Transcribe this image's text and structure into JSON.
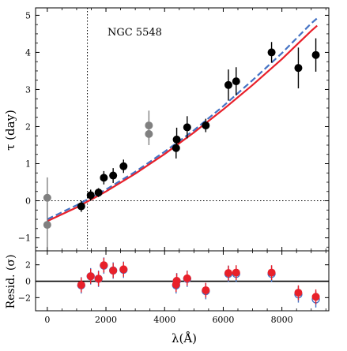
{
  "chart_data": [
    {
      "type": "scatter",
      "annotation": "NGC 5548",
      "xlabel": "",
      "ylabel": "τ (day)",
      "xlim": [
        -400,
        9600
      ],
      "ylim": [
        -1.35,
        5.2
      ],
      "x_ticks": [
        0,
        2000,
        4000,
        6000,
        8000
      ],
      "y_ticks": [
        -1,
        0,
        1,
        2,
        3,
        4,
        5
      ],
      "y_tick_labels": [
        "−1",
        "0",
        "1",
        "2",
        "3",
        "4",
        "5"
      ],
      "vline_x": 1367,
      "hline_y": 0,
      "series": [
        {
          "color": "#000000",
          "points": [
            {
              "x": 1158,
              "y": -0.15,
              "err": 0.15
            },
            {
              "x": 1479,
              "y": 0.15,
              "err": 0.15
            },
            {
              "x": 1746,
              "y": 0.22,
              "err": 0.12
            },
            {
              "x": 1928,
              "y": 0.62,
              "err": 0.18
            },
            {
              "x": 2246,
              "y": 0.68,
              "err": 0.2
            },
            {
              "x": 2600,
              "y": 0.93,
              "err": 0.18
            },
            {
              "x": 4392,
              "y": 1.42,
              "err": 0.28
            },
            {
              "x": 4413,
              "y": 1.65,
              "err": 0.32
            },
            {
              "x": 4770,
              "y": 1.98,
              "err": 0.3
            },
            {
              "x": 5404,
              "y": 2.03,
              "err": 0.18
            },
            {
              "x": 6176,
              "y": 3.12,
              "err": 0.42
            },
            {
              "x": 6440,
              "y": 3.22,
              "err": 0.38
            },
            {
              "x": 7648,
              "y": 4.0,
              "err": 0.28
            },
            {
              "x": 8561,
              "y": 3.58,
              "err": 0.55
            },
            {
              "x": 9157,
              "y": 3.93,
              "err": 0.45
            }
          ]
        },
        {
          "color": "#808080",
          "points": [
            {
              "x": 0,
              "y": 0.08,
              "err": 0.55
            },
            {
              "x": 0,
              "y": -0.65,
              "err": 0.6
            },
            {
              "x": 3465,
              "y": 2.03,
              "err": 0.4
            },
            {
              "x": 3465,
              "y": 1.8,
              "err": 0.3
            }
          ]
        }
      ],
      "lines": [
        {
          "color": "#4472c4",
          "dash": true,
          "x": [
            0,
            1000,
            2000,
            3000,
            4000,
            5000,
            6000,
            7000,
            8000,
            9000,
            9200
          ],
          "y": [
            -0.5,
            -0.12,
            0.3,
            0.78,
            1.32,
            1.9,
            2.55,
            3.25,
            3.98,
            4.78,
            4.92
          ]
        },
        {
          "color": "#e8202a",
          "dash": false,
          "x": [
            0,
            1000,
            2000,
            3000,
            4000,
            5000,
            6000,
            7000,
            8000,
            9000,
            9200
          ],
          "y": [
            -0.55,
            -0.18,
            0.25,
            0.73,
            1.26,
            1.84,
            2.46,
            3.12,
            3.82,
            4.58,
            4.72
          ]
        }
      ]
    },
    {
      "type": "scatter",
      "xlabel": "λ(Å)",
      "ylabel": "Resid. (σ)",
      "xlim": [
        -400,
        9600
      ],
      "ylim": [
        -3.6,
        3.7
      ],
      "x_ticks": [
        0,
        2000,
        4000,
        6000,
        8000
      ],
      "x_tick_labels": [
        "0",
        "2000",
        "4000",
        "6000",
        "8000"
      ],
      "y_ticks": [
        -2,
        0,
        2
      ],
      "y_tick_labels": [
        "−2",
        "0",
        "2"
      ],
      "hline_y": 0,
      "series": [
        {
          "color": "#4472c4",
          "points": [
            {
              "x": 1158,
              "y": -0.5,
              "err": 1.0
            },
            {
              "x": 1479,
              "y": 0.6,
              "err": 1.0
            },
            {
              "x": 1746,
              "y": 0.3,
              "err": 1.0
            },
            {
              "x": 1928,
              "y": 1.9,
              "err": 1.0
            },
            {
              "x": 2246,
              "y": 1.3,
              "err": 1.0
            },
            {
              "x": 2600,
              "y": 1.4,
              "err": 1.0
            },
            {
              "x": 4392,
              "y": -0.5,
              "err": 1.0
            },
            {
              "x": 4413,
              "y": 0.0,
              "err": 1.0
            },
            {
              "x": 4770,
              "y": 0.3,
              "err": 1.0
            },
            {
              "x": 5404,
              "y": -1.2,
              "err": 1.0
            },
            {
              "x": 6176,
              "y": 0.9,
              "err": 1.0
            },
            {
              "x": 6440,
              "y": 0.9,
              "err": 1.0
            },
            {
              "x": 7648,
              "y": 0.9,
              "err": 1.0
            },
            {
              "x": 8561,
              "y": -1.6,
              "err": 1.0
            },
            {
              "x": 9157,
              "y": -2.2,
              "err": 1.0
            }
          ]
        },
        {
          "color": "#e8202a",
          "points": [
            {
              "x": 1158,
              "y": -0.45,
              "err": 0.9
            },
            {
              "x": 1479,
              "y": 0.6,
              "err": 0.9
            },
            {
              "x": 1746,
              "y": 0.3,
              "err": 0.9
            },
            {
              "x": 1928,
              "y": 1.95,
              "err": 0.9
            },
            {
              "x": 2246,
              "y": 1.3,
              "err": 0.9
            },
            {
              "x": 2600,
              "y": 1.45,
              "err": 0.9
            },
            {
              "x": 4392,
              "y": -0.4,
              "err": 0.9
            },
            {
              "x": 4413,
              "y": 0.05,
              "err": 0.9
            },
            {
              "x": 4770,
              "y": 0.35,
              "err": 0.9
            },
            {
              "x": 5404,
              "y": -1.1,
              "err": 0.9
            },
            {
              "x": 6176,
              "y": 1.0,
              "err": 0.9
            },
            {
              "x": 6440,
              "y": 1.05,
              "err": 0.9
            },
            {
              "x": 7648,
              "y": 1.05,
              "err": 0.9
            },
            {
              "x": 8561,
              "y": -1.4,
              "err": 0.9
            },
            {
              "x": 9157,
              "y": -1.9,
              "err": 0.9
            }
          ]
        }
      ]
    }
  ]
}
